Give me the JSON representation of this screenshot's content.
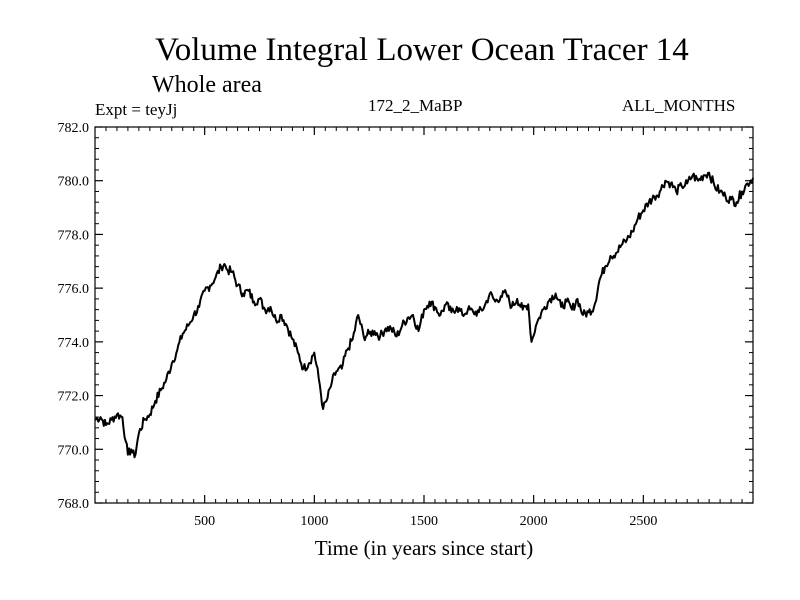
{
  "chart_data": {
    "type": "line",
    "title": "Volume Integral Lower Ocean Tracer 14",
    "subtitle": "Whole area",
    "expt_label": "Expt = teyJj",
    "run_label": "172_2_MaBP",
    "months_label": "ALL_MONTHS",
    "xlabel": "Time (in years since start)",
    "ylabel": "",
    "xlim": [
      0,
      3000
    ],
    "ylim": [
      768.0,
      782.0
    ],
    "xticks": [
      500,
      1000,
      1500,
      2000,
      2500
    ],
    "xtick_labels": [
      "500",
      "1000",
      "1500",
      "2000",
      "2500"
    ],
    "yticks": [
      768.0,
      770.0,
      772.0,
      774.0,
      776.0,
      778.0,
      780.0,
      782.0
    ],
    "ytick_labels": [
      "768.0",
      "770.0",
      "772.0",
      "774.0",
      "776.0",
      "778.0",
      "780.0",
      "782.0"
    ],
    "series": [
      {
        "name": "Volume Integral Lower Ocean Tracer 14",
        "x": [
          0,
          25,
          50,
          75,
          100,
          125,
          140,
          150,
          165,
          180,
          200,
          225,
          250,
          275,
          300,
          325,
          350,
          375,
          400,
          425,
          450,
          475,
          500,
          525,
          550,
          575,
          590,
          600,
          625,
          650,
          675,
          700,
          725,
          750,
          775,
          800,
          825,
          850,
          875,
          900,
          925,
          950,
          975,
          1000,
          1025,
          1040,
          1060,
          1080,
          1100,
          1125,
          1150,
          1175,
          1200,
          1225,
          1250,
          1275,
          1300,
          1325,
          1350,
          1375,
          1400,
          1425,
          1450,
          1475,
          1500,
          1525,
          1550,
          1575,
          1600,
          1625,
          1650,
          1675,
          1700,
          1725,
          1750,
          1775,
          1800,
          1825,
          1850,
          1875,
          1900,
          1925,
          1950,
          1975,
          1990,
          2010,
          2025,
          2050,
          2075,
          2100,
          2125,
          2150,
          2175,
          2200,
          2225,
          2250,
          2275,
          2300,
          2325,
          2350,
          2375,
          2400,
          2425,
          2450,
          2475,
          2500,
          2525,
          2550,
          2575,
          2600,
          2625,
          2650,
          2675,
          2700,
          2725,
          2750,
          2775,
          2800,
          2825,
          2850,
          2875,
          2900,
          2925,
          2950,
          2975,
          3000
        ],
        "values": [
          771.1,
          771.2,
          770.9,
          771.1,
          771.3,
          771.2,
          770.3,
          769.8,
          770.0,
          769.7,
          770.6,
          771.1,
          771.3,
          771.8,
          772.2,
          772.6,
          773.2,
          773.7,
          774.3,
          774.6,
          775.0,
          775.3,
          775.9,
          776.1,
          776.4,
          776.8,
          776.9,
          776.7,
          776.6,
          776.1,
          775.8,
          775.9,
          775.5,
          775.6,
          775.2,
          775.3,
          774.8,
          775.0,
          774.6,
          774.1,
          773.6,
          773.0,
          773.2,
          773.6,
          772.4,
          771.5,
          771.9,
          772.5,
          772.9,
          773.0,
          773.7,
          774.1,
          775.0,
          774.2,
          774.3,
          774.4,
          774.2,
          774.5,
          774.5,
          774.2,
          774.6,
          774.9,
          775.0,
          774.4,
          775.2,
          775.5,
          775.3,
          775.0,
          775.4,
          775.1,
          775.3,
          775.0,
          775.2,
          775.1,
          775.1,
          775.3,
          775.8,
          775.5,
          775.7,
          775.8,
          775.3,
          775.6,
          775.2,
          775.4,
          774.0,
          774.6,
          774.9,
          775.3,
          775.6,
          775.8,
          775.3,
          775.5,
          775.2,
          775.6,
          775.0,
          775.1,
          775.3,
          776.3,
          776.8,
          777.2,
          777.3,
          777.6,
          777.8,
          778.1,
          778.6,
          778.9,
          779.2,
          779.4,
          779.6,
          780.0,
          779.9,
          779.6,
          779.8,
          779.9,
          780.2,
          780.0,
          780.2,
          780.3,
          779.8,
          779.6,
          779.4,
          779.3,
          779.2,
          779.6,
          779.9,
          780.1
        ]
      }
    ]
  }
}
